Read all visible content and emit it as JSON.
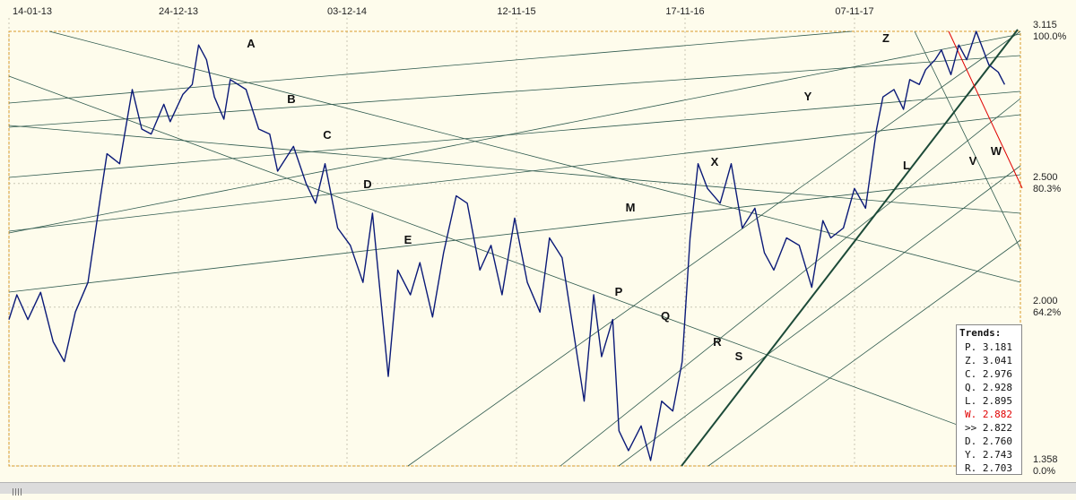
{
  "chart_data": {
    "type": "line",
    "x_ticks": [
      "14-01-13",
      "24-12-13",
      "03-12-14",
      "12-11-15",
      "17-11-16",
      "07-11-17"
    ],
    "y_ticks": [
      {
        "value": 3.115,
        "label": "3.115",
        "pct": "100.0%"
      },
      {
        "value": 2.5,
        "label": "2.500",
        "pct": "80.3%"
      },
      {
        "value": 2.0,
        "label": "2.000",
        "pct": "64.2%"
      },
      {
        "value": 1.358,
        "label": "1.358",
        "pct": "0.0%"
      }
    ],
    "ylim": [
      1.358,
      3.115
    ],
    "x_range_months": [
      0,
      64
    ],
    "series": [
      {
        "color": "#0b1a78",
        "x_months": [
          0,
          0.5,
          1.2,
          2,
          2.8,
          3.5,
          4.2,
          5,
          5.8,
          6.2,
          7,
          7.8,
          8.4,
          9,
          9.8,
          10.2,
          11,
          11.6,
          12,
          12.5,
          13,
          13.6,
          14,
          15,
          15.8,
          16.5,
          17,
          18,
          18.8,
          19.4,
          20,
          20.8,
          21.6,
          22.4,
          23,
          24,
          24.6,
          25.4,
          26,
          26.8,
          27.5,
          28.3,
          29,
          29.8,
          30.5,
          31.2,
          32,
          32.8,
          33.6,
          34.2,
          35,
          35.6,
          36.4,
          37,
          37.5,
          38.2,
          38.6,
          39.2,
          40,
          40.6,
          41.3,
          42,
          42.6,
          43.1,
          43.6,
          44.2,
          45,
          45.7,
          46.4,
          47.2,
          47.8,
          48.4,
          49.2,
          50,
          50.8,
          51.5,
          52,
          52.8,
          53.5,
          54.2,
          54.9,
          55.3,
          56,
          56.6,
          57,
          57.6,
          58,
          58.6,
          59,
          59.6,
          60.1,
          60.6,
          61.2,
          62,
          62.6,
          63
        ],
        "y": [
          1.95,
          2.05,
          1.95,
          2.06,
          1.86,
          1.78,
          1.98,
          2.1,
          2.45,
          2.62,
          2.58,
          2.88,
          2.72,
          2.7,
          2.82,
          2.75,
          2.86,
          2.9,
          3.06,
          3.0,
          2.85,
          2.76,
          2.92,
          2.88,
          2.72,
          2.7,
          2.55,
          2.65,
          2.5,
          2.42,
          2.58,
          2.32,
          2.25,
          2.1,
          2.38,
          1.72,
          2.15,
          2.05,
          2.18,
          1.96,
          2.22,
          2.45,
          2.42,
          2.15,
          2.25,
          2.05,
          2.36,
          2.1,
          1.98,
          2.28,
          2.2,
          1.95,
          1.62,
          2.05,
          1.8,
          1.95,
          1.5,
          1.42,
          1.52,
          1.38,
          1.62,
          1.58,
          1.78,
          2.28,
          2.58,
          2.48,
          2.42,
          2.58,
          2.32,
          2.4,
          2.22,
          2.15,
          2.28,
          2.25,
          2.08,
          2.35,
          2.28,
          2.32,
          2.48,
          2.4,
          2.72,
          2.85,
          2.88,
          2.8,
          2.92,
          2.9,
          2.96,
          3.0,
          3.04,
          2.94,
          3.06,
          3.0,
          3.115,
          2.98,
          2.95,
          2.9
        ]
      }
    ],
    "trend_labels": [
      "A",
      "B",
      "C",
      "D",
      "E",
      "M",
      "P",
      "Q",
      "R",
      "S",
      "X",
      "Y",
      "Z",
      "L",
      "V",
      "W"
    ]
  },
  "trends_box": {
    "title": "Trends:",
    "items": [
      {
        "key": "P.",
        "value": "3.181",
        "color": "#111111"
      },
      {
        "key": "Z.",
        "value": "3.041",
        "color": "#111111"
      },
      {
        "key": "C.",
        "value": "2.976",
        "color": "#111111"
      },
      {
        "key": "Q.",
        "value": "2.928",
        "color": "#111111"
      },
      {
        "key": "L.",
        "value": "2.895",
        "color": "#111111"
      },
      {
        "key": "W.",
        "value": "2.882",
        "color": "#e00000"
      },
      {
        "key": ">>",
        "value": "2.822",
        "color": "#111111"
      },
      {
        "key": "D.",
        "value": "2.760",
        "color": "#111111"
      },
      {
        "key": "Y.",
        "value": "2.743",
        "color": "#111111"
      },
      {
        "key": "R.",
        "value": "2.703",
        "color": "#111111"
      }
    ]
  },
  "colors": {
    "background": "#fefcec",
    "price_line": "#0b1a78",
    "trend_line": "#2f5a4e",
    "main_trend": "#1c4a38",
    "w_trend": "#e00000",
    "frame": "#d89a2a"
  }
}
